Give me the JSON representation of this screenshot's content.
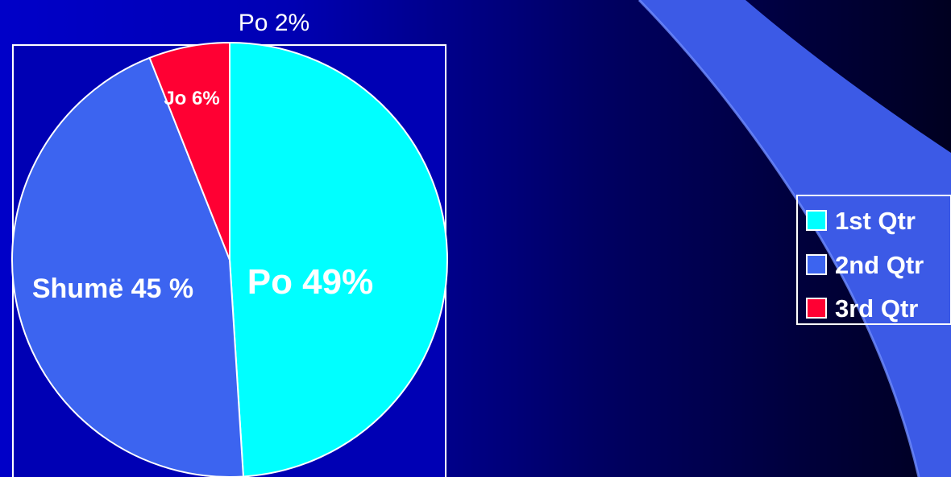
{
  "colors": {
    "background_left": "#0000c8",
    "background_right": "#000020",
    "swoosh": "#3c5ae6",
    "plot_area": "#0000b4",
    "border": "#ffffff"
  },
  "chart_data": {
    "type": "pie",
    "title": "Po 2%",
    "slices": [
      {
        "label": "Po 49%",
        "value": 49,
        "color": "#00ffff"
      },
      {
        "label": "Shumë 45 %",
        "value": 45,
        "color": "#3c64f0"
      },
      {
        "label": "Jo 6%",
        "value": 6,
        "color": "#ff0033"
      }
    ],
    "legend": {
      "position": "right",
      "entries": [
        {
          "name": "1st Qtr",
          "color": "#00ffff"
        },
        {
          "name": "2nd Qtr",
          "color": "#3c64f0"
        },
        {
          "name": "3rd Qtr",
          "color": "#ff0033"
        }
      ]
    }
  }
}
